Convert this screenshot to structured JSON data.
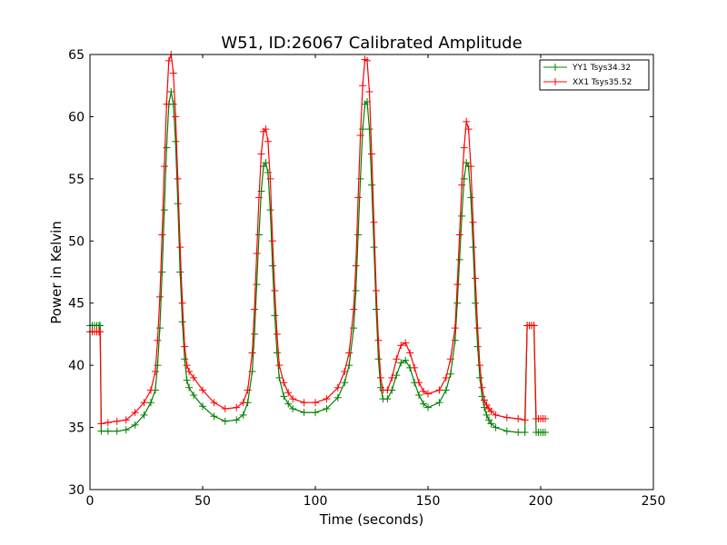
{
  "chart_data": {
    "type": "line",
    "title": "W51, ID:26067 Calibrated Amplitude",
    "xlabel": "Time (seconds)",
    "ylabel": "Power in Kelvin",
    "xlim": [
      0,
      250
    ],
    "ylim": [
      30,
      65
    ],
    "xticks": [
      0,
      50,
      100,
      150,
      200,
      250
    ],
    "yticks": [
      30,
      35,
      40,
      45,
      50,
      55,
      60,
      65
    ],
    "grid": false,
    "legend_position": "top-right",
    "marker": "+",
    "series": [
      {
        "name": "YY1 Tsys34.32",
        "color": "#008000",
        "x": [
          0,
          1,
          2,
          3,
          4,
          4.5,
          5,
          8,
          12,
          16,
          20,
          24,
          27,
          29,
          30,
          31,
          32,
          33,
          34,
          35,
          36,
          37,
          38,
          39,
          40,
          41,
          42,
          43,
          44,
          46,
          50,
          55,
          60,
          65,
          68,
          70,
          72,
          73,
          74,
          75,
          76,
          77,
          78,
          79,
          80,
          81,
          82,
          83,
          84,
          86,
          88,
          90,
          95,
          100,
          105,
          110,
          113,
          115,
          117,
          118,
          119,
          120,
          121,
          122,
          123,
          124,
          125,
          126,
          127,
          128,
          129,
          130,
          132,
          134,
          136,
          138,
          140,
          142,
          144,
          146,
          148,
          150,
          155,
          158,
          160,
          162,
          163,
          164,
          165,
          166,
          167,
          168,
          169,
          170,
          171,
          172,
          173,
          174,
          175,
          176,
          177,
          178,
          180,
          185,
          190,
          193,
          194,
          195,
          196,
          197,
          198,
          199,
          200,
          201,
          202
        ],
        "y": [
          43.2,
          43.2,
          43.2,
          43.2,
          43.2,
          43.2,
          34.7,
          34.7,
          34.7,
          34.8,
          35.2,
          36.0,
          37.0,
          38.0,
          40.0,
          43.0,
          47.5,
          52.5,
          57.5,
          61.0,
          62.0,
          61.0,
          58.0,
          53.0,
          47.5,
          43.5,
          40.5,
          38.8,
          38.2,
          37.6,
          36.7,
          35.9,
          35.5,
          35.6,
          36.0,
          37.0,
          39.5,
          42.5,
          46.5,
          50.5,
          54.0,
          56.0,
          56.3,
          55.5,
          52.5,
          48.0,
          44.0,
          41.0,
          39.0,
          37.5,
          36.9,
          36.5,
          36.2,
          36.2,
          36.5,
          37.4,
          38.6,
          40.0,
          43.0,
          46.0,
          50.5,
          55.0,
          59.0,
          61.0,
          61.2,
          59.0,
          54.5,
          49.5,
          44.5,
          40.5,
          38.2,
          37.3,
          37.3,
          38.0,
          39.2,
          40.2,
          40.4,
          39.8,
          38.6,
          37.6,
          36.9,
          36.6,
          37.0,
          38.0,
          39.3,
          42.0,
          45.0,
          48.5,
          52.0,
          55.0,
          56.3,
          56.0,
          53.5,
          49.5,
          45.0,
          41.5,
          39.0,
          37.5,
          36.6,
          36.0,
          35.6,
          35.3,
          35.0,
          34.7,
          34.6,
          34.6,
          43.2,
          43.2,
          43.2,
          43.2,
          34.6,
          34.6,
          34.6,
          34.6,
          34.6
        ]
      },
      {
        "name": "XX1 Tsys35.52",
        "color": "#ff0000",
        "x": [
          0,
          1,
          2,
          3,
          4,
          4.5,
          5,
          8,
          12,
          16,
          20,
          24,
          27,
          29,
          30,
          31,
          32,
          33,
          34,
          35,
          36,
          37,
          38,
          39,
          40,
          41,
          42,
          43,
          44,
          46,
          50,
          55,
          60,
          65,
          68,
          70,
          72,
          73,
          74,
          75,
          76,
          77,
          78,
          79,
          80,
          81,
          82,
          83,
          84,
          86,
          88,
          90,
          95,
          100,
          105,
          110,
          113,
          115,
          117,
          118,
          119,
          120,
          121,
          122,
          123,
          124,
          125,
          126,
          127,
          128,
          129,
          130,
          132,
          134,
          136,
          138,
          140,
          142,
          144,
          146,
          148,
          150,
          155,
          158,
          160,
          162,
          163,
          164,
          165,
          166,
          167,
          168,
          169,
          170,
          171,
          172,
          173,
          174,
          175,
          176,
          177,
          178,
          180,
          185,
          190,
          193,
          194,
          195,
          196,
          197,
          198,
          199,
          200,
          201,
          202
        ],
        "y": [
          42.7,
          42.7,
          42.7,
          42.7,
          42.7,
          42.7,
          35.3,
          35.4,
          35.5,
          35.6,
          36.2,
          37.0,
          38.0,
          39.5,
          42.0,
          45.5,
          50.5,
          56.0,
          61.0,
          64.5,
          65.0,
          63.5,
          60.0,
          55.0,
          49.5,
          45.0,
          41.5,
          40.0,
          39.5,
          39.0,
          38.0,
          37.0,
          36.5,
          36.6,
          37.0,
          38.0,
          41.0,
          44.5,
          49.0,
          53.5,
          57.0,
          58.8,
          59.0,
          58.0,
          55.0,
          50.0,
          46.0,
          42.5,
          40.0,
          38.6,
          37.8,
          37.3,
          37.0,
          37.0,
          37.3,
          38.2,
          39.5,
          41.0,
          44.5,
          48.0,
          53.5,
          58.5,
          62.5,
          64.6,
          64.5,
          62.0,
          57.0,
          51.5,
          46.0,
          42.0,
          39.0,
          38.0,
          38.0,
          39.0,
          40.5,
          41.6,
          41.8,
          41.0,
          39.8,
          38.6,
          37.9,
          37.7,
          38.0,
          39.0,
          40.5,
          43.0,
          46.5,
          50.5,
          54.5,
          57.5,
          59.6,
          59.0,
          56.0,
          51.5,
          47.0,
          43.0,
          40.0,
          38.2,
          37.2,
          36.8,
          36.5,
          36.3,
          36.0,
          35.8,
          35.7,
          35.6,
          43.2,
          43.2,
          43.2,
          43.2,
          35.7,
          35.7,
          35.7,
          35.7,
          35.7
        ]
      }
    ]
  }
}
